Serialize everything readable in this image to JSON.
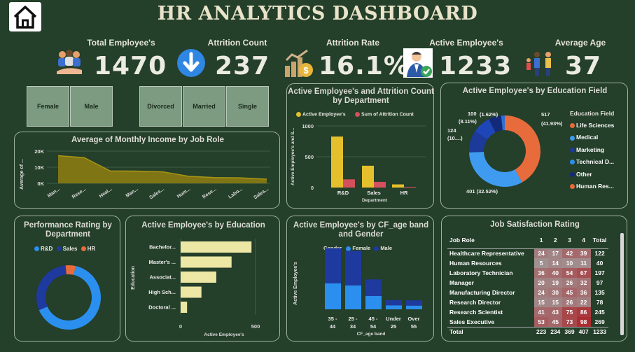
{
  "header": {
    "title": "HR ANALYTICS DASHBOARD",
    "home_icon": "home-icon"
  },
  "kpis": [
    {
      "label": "Total Employee's",
      "value": "1470",
      "icon": "people-group-icon"
    },
    {
      "label": "Attrition Count",
      "value": "237",
      "icon": "down-arrow-icon"
    },
    {
      "label": "Attrition Rate",
      "value": "16.1%",
      "icon": "money-growth-icon"
    },
    {
      "label": "Active Employee's",
      "value": "1233",
      "icon": "employee-check-icon"
    },
    {
      "label": "Average Age",
      "value": "37",
      "icon": "family-icon"
    }
  ],
  "slicers": {
    "gender": [
      "Female",
      "Male"
    ],
    "marital": [
      "Divorced",
      "Married",
      "Single"
    ]
  },
  "charts": {
    "income": {
      "title": "Average of Monthly Income by Job Role",
      "ylabel": "Average of ...",
      "yticks": [
        "20K",
        "10K",
        "0K"
      ],
      "xticks": [
        "Man...",
        "Rese...",
        "Heal...",
        "Man...",
        "Sales...",
        "Hum...",
        "Rese...",
        "Labo...",
        "Sales..."
      ]
    },
    "dept": {
      "title": "Active Employee's and Attrition Count by Department",
      "legend": [
        "Active Employee's",
        "Sum of Attrition Count"
      ],
      "ylabel": "Active Employee's and S...",
      "xlabel": "Department",
      "yticks": [
        "1000",
        "500",
        "0"
      ],
      "categories": [
        "R&D",
        "Sales",
        "HR"
      ]
    },
    "edufield": {
      "title": "Active Employee's by Education Field",
      "legend_title": "Education Field",
      "legend": [
        "Life Sciences",
        "Medical",
        "Marketing",
        "Technical D...",
        "Other",
        "Human Res..."
      ],
      "labels": {
        "a": "517",
        "b": "(41.93%)",
        "c": "401 (32.52%)",
        "d": "124",
        "e": "(10....)",
        "f": "100",
        "g": "(8.11%)",
        "h": "(1.62%)"
      }
    },
    "perf": {
      "title": "Performance Rating by Department",
      "legend": [
        "R&D",
        "Sales",
        "HR"
      ]
    },
    "edu": {
      "title": "Active Employee's by Education",
      "ylabel": "Education",
      "xlabel": "Active Employee's",
      "categories": [
        "Bachelor...",
        "Master's ...",
        "Associat...",
        "High Sch...",
        "Doctoral ..."
      ],
      "xticks": [
        "0",
        "500"
      ]
    },
    "age": {
      "title": "Active Employee's by CF_age band and Gender",
      "legend_title": "Gender",
      "legend": [
        "Female",
        "Male"
      ],
      "ylabel": "Active Employee's",
      "xlabel": "CF_age band",
      "categories": [
        "35 - 44",
        "25 - 34",
        "45 - 54",
        "Under 25",
        "Over 55"
      ]
    },
    "js": {
      "title": "Job Satisfaction Rating",
      "header": [
        "Job Role",
        "1",
        "2",
        "3",
        "4",
        "Total"
      ],
      "rows": [
        [
          "Healthcare Representative",
          "24",
          "17",
          "42",
          "39",
          "122"
        ],
        [
          "Human Resources",
          "5",
          "14",
          "10",
          "11",
          "40"
        ],
        [
          "Laboratory Technician",
          "36",
          "40",
          "54",
          "67",
          "197"
        ],
        [
          "Manager",
          "20",
          "19",
          "26",
          "32",
          "97"
        ],
        [
          "Manufacturing Director",
          "24",
          "30",
          "45",
          "36",
          "135"
        ],
        [
          "Research Director",
          "15",
          "15",
          "26",
          "22",
          "78"
        ],
        [
          "Research Scientist",
          "41",
          "43",
          "75",
          "86",
          "245"
        ],
        [
          "Sales Executive",
          "53",
          "45",
          "73",
          "98",
          "269"
        ]
      ],
      "total": [
        "Total",
        "223",
        "234",
        "369",
        "407",
        "1233"
      ]
    }
  },
  "chart_data": [
    {
      "type": "area",
      "title": "Average of Monthly Income by Job Role",
      "categories": [
        "Man...",
        "Rese...",
        "Heal...",
        "Man...",
        "Sales...",
        "Hum...",
        "Rese...",
        "Labo...",
        "Sales..."
      ],
      "values": [
        17200,
        16000,
        7700,
        7600,
        7200,
        4400,
        3600,
        3400,
        2600
      ],
      "ylim": [
        0,
        20000
      ]
    },
    {
      "type": "bar",
      "title": "Active Employee's and Attrition Count by Department",
      "categories": [
        "R&D",
        "Sales",
        "HR"
      ],
      "series": [
        {
          "name": "Active Employee's",
          "values": [
            828,
            354,
            51
          ]
        },
        {
          "name": "Sum of Attrition Count",
          "values": [
            133,
            92,
            12
          ]
        }
      ],
      "ylim": [
        0,
        1000
      ]
    },
    {
      "type": "pie",
      "title": "Active Employee's by Education Field",
      "categories": [
        "Life Sciences",
        "Medical",
        "Marketing",
        "Technical D...",
        "Other",
        "Human Res..."
      ],
      "values": [
        517,
        401,
        124,
        100,
        71,
        20
      ]
    },
    {
      "type": "pie",
      "title": "Performance Rating by Department",
      "categories": [
        "R&D",
        "Sales",
        "HR"
      ],
      "values": [
        65,
        30,
        5
      ]
    },
    {
      "type": "bar",
      "title": "Active Employee's by Education",
      "categories": [
        "Bachelor...",
        "Master's ...",
        "Associat...",
        "High Sch...",
        "Doctoral ..."
      ],
      "values": [
        473,
        340,
        238,
        139,
        43
      ],
      "xlim": [
        0,
        560
      ]
    },
    {
      "type": "bar",
      "title": "Active Employee's by CF_age band and Gender",
      "categories": [
        "35 - 44",
        "25 - 34",
        "45 - 54",
        "Under 25",
        "Over 55"
      ],
      "series": [
        {
          "name": "Female",
          "values": [
            195,
            180,
            100,
            30,
            28
          ]
        },
        {
          "name": "Male",
          "values": [
            265,
            260,
            125,
            40,
            40
          ]
        }
      ],
      "ylim": [
        0,
        500
      ]
    }
  ],
  "colors": {
    "bg": "#243f2a",
    "gold": "#e3c02c",
    "red": "#d4505c",
    "navy": "#1f3a9e",
    "blue": "#2b8ff0",
    "orange": "#e86b3c",
    "olive": "#8a7b12",
    "cream": "#ece7a4"
  }
}
